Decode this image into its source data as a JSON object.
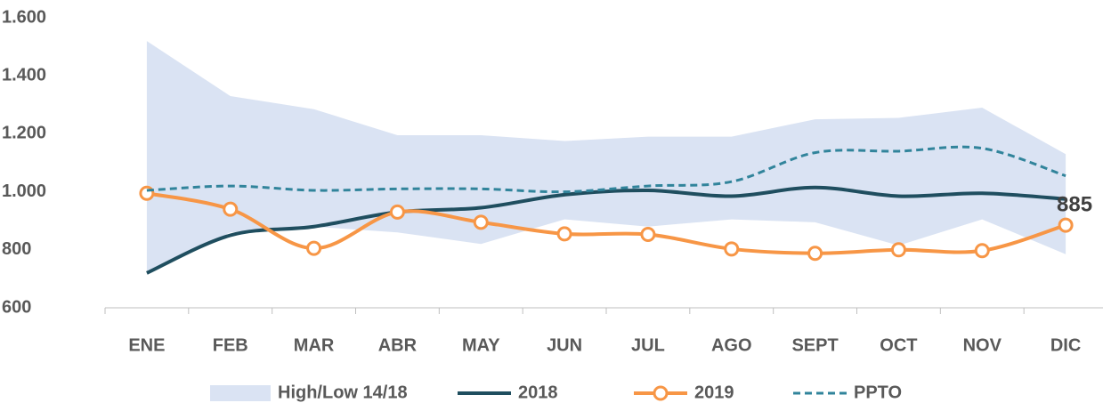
{
  "chart_data": {
    "type": "line",
    "categories": [
      "ENE",
      "FEB",
      "MAR",
      "ABR",
      "MAY",
      "JUN",
      "JUL",
      "AGO",
      "SEPT",
      "OCT",
      "NOV",
      "DIC"
    ],
    "band": {
      "name": "High/Low 14/18",
      "color": "#dae3f3",
      "high": [
        1520,
        1330,
        1285,
        1195,
        1195,
        1175,
        1190,
        1190,
        1250,
        1255,
        1290,
        1130
      ],
      "low": [
        720,
        860,
        880,
        860,
        820,
        905,
        880,
        905,
        895,
        815,
        905,
        785
      ]
    },
    "series": [
      {
        "name": "2018",
        "color": "#1f4e5f",
        "style": "solid",
        "values": [
          720,
          850,
          880,
          930,
          945,
          990,
          1005,
          985,
          1015,
          985,
          995,
          975
        ]
      },
      {
        "name": "2019",
        "color": "#f79646",
        "style": "markers",
        "values": [
          995,
          940,
          805,
          930,
          895,
          855,
          853,
          803,
          788,
          800,
          797,
          885
        ],
        "value_labels": [
          null,
          null,
          null,
          null,
          null,
          null,
          null,
          null,
          null,
          null,
          null,
          "885"
        ]
      },
      {
        "name": "PPTO",
        "color": "#31849b",
        "style": "dashed",
        "values": [
          1005,
          1020,
          1005,
          1010,
          1010,
          1000,
          1020,
          1035,
          1135,
          1140,
          1150,
          1055
        ]
      }
    ],
    "ylim": [
      600,
      1600
    ],
    "yticks": [
      600,
      800,
      {
        "value": 1000,
        "label": "1.000"
      },
      {
        "value": 1200,
        "label": "1.200"
      },
      {
        "value": 1400,
        "label": "1.400"
      },
      {
        "value": 1600,
        "label": "1.600"
      }
    ]
  }
}
